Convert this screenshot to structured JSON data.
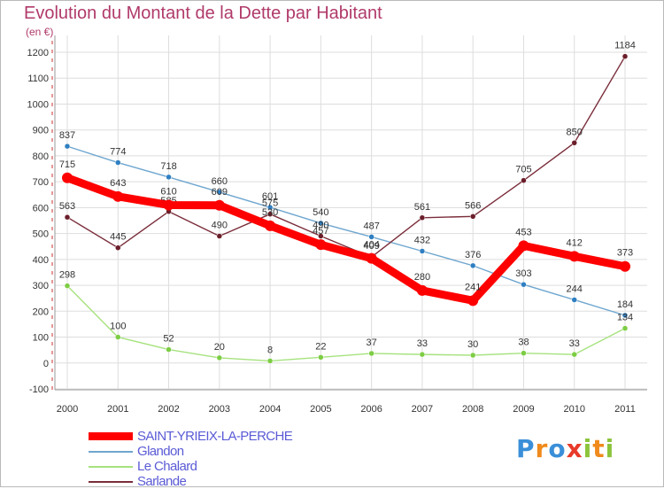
{
  "header": {
    "title": "Evolution du Montant de la Dette par Habitant",
    "unit": "(en €)"
  },
  "chart_data": {
    "type": "line",
    "title": "Evolution du Montant de la Dette par Habitant",
    "ylabel": "(en €)",
    "x": [
      "2000",
      "2001",
      "2002",
      "2003",
      "2004",
      "2005",
      "2006",
      "2007",
      "2008",
      "2009",
      "2010",
      "2011"
    ],
    "ylim": [
      -100,
      1200
    ],
    "yticks": [
      "-100",
      "0",
      "100",
      "200",
      "300",
      "400",
      "500",
      "600",
      "700",
      "800",
      "900",
      "1000",
      "1100",
      "1200"
    ],
    "grid": true,
    "legend_position": "bottom-left",
    "series": [
      {
        "name": "Glandon",
        "color": "#6ea6cf",
        "point_color": "#2f7fc2",
        "values": [
          837,
          774,
          718,
          660,
          601,
          540,
          487,
          432,
          376,
          303,
          244,
          184
        ]
      },
      {
        "name": "Le Chalard",
        "color": "#a6e27e",
        "point_color": "#7dcd44",
        "values": [
          298,
          100,
          52,
          20,
          8,
          22,
          37,
          33,
          30,
          38,
          33,
          134
        ]
      },
      {
        "name": "Sarlande",
        "color": "#7a2d3a",
        "point_color": "#6b1e2a",
        "values": [
          563,
          445,
          585,
          490,
          575,
          490,
          409,
          561,
          566,
          705,
          850,
          1184
        ]
      },
      {
        "name": "SAINT-YRIEIX-LA-PERCHE",
        "color": "#ff0000",
        "point_color": "#ff0000",
        "values": [
          715,
          643,
          610,
          609,
          530,
          457,
          404,
          280,
          241,
          453,
          412,
          373
        ]
      }
    ],
    "labels": {
      "Glandon": [
        "837",
        "774",
        "718",
        "660",
        "601",
        "540",
        "487",
        "432",
        "376",
        "303",
        "244",
        "184"
      ],
      "Le Chalard": [
        "298",
        "100",
        "52",
        "20",
        "8",
        "22",
        "37",
        "33",
        "30",
        "38",
        "33",
        "134"
      ],
      "Sarlande": [
        "563",
        "445",
        "585",
        "490",
        "575",
        "490",
        "409",
        "561",
        "566",
        "705",
        "850",
        "1184"
      ],
      "SAINT-YRIEIX-LA-PERCHE": [
        "715",
        "643",
        "610",
        "609",
        "530",
        "457",
        "404",
        "280",
        "241",
        "453",
        "412",
        "373"
      ]
    }
  },
  "legend": {
    "items": [
      {
        "label": "SAINT-YRIEIX-LA-PERCHE",
        "color": "#ff0000",
        "text_color": "#5b5bd6"
      },
      {
        "label": "Glandon",
        "color": "#6ea6cf",
        "text_color": "#5b5bd6"
      },
      {
        "label": "Le Chalard",
        "color": "#a6e27e",
        "text_color": "#5b5bd6"
      },
      {
        "label": "Sarlande",
        "color": "#7a2d3a",
        "text_color": "#5b5bd6"
      }
    ]
  },
  "logo": {
    "letters": [
      "P",
      "r",
      "o",
      "x",
      "i",
      "t",
      "i"
    ],
    "colors": [
      "#3a8fd8",
      "#f08a1c",
      "#3a8fd8",
      "#e83a2a",
      "#8cc43c",
      "#f08a1c",
      "#8cc43c"
    ]
  }
}
